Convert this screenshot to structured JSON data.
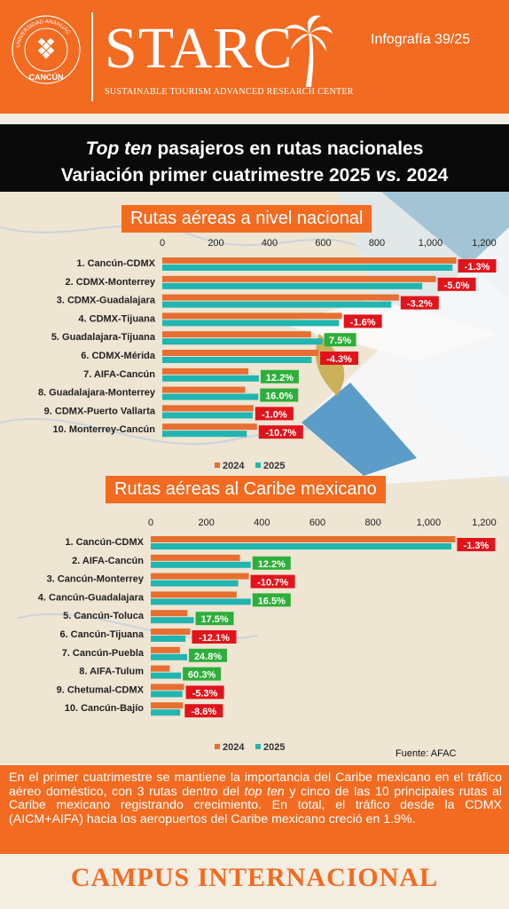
{
  "header": {
    "seal_text": "UNIVERSIDAD ANÁHUAC · VINCE IN BONO MALUM",
    "seal_city": "CANCÚN",
    "brand": "STARC",
    "brand_subtitle": "SUSTAINABLE TOURISM ADVANCED RESEARCH CENTER",
    "issue": "Infografía 39/25",
    "colors": {
      "orange": "#f26b21",
      "white": "#ffffff"
    }
  },
  "title": {
    "line1_italic": "Top ten",
    "line1_rest": " pasajeros en rutas nacionales",
    "line2_start": "Variación primer cuatrimestre 2025 ",
    "line2_italic": "vs.",
    "line2_end": " 2024"
  },
  "sections": [
    {
      "label": "Rutas aéreas a nivel nacional"
    },
    {
      "label": "Rutas aéreas al Caribe mexicano"
    }
  ],
  "chart_data": [
    {
      "type": "bar",
      "orientation": "horizontal",
      "xlim": [
        0,
        1200
      ],
      "ticks": [
        "0",
        "200",
        "400",
        "600",
        "800",
        "1,000",
        "1,200"
      ],
      "categories": [
        "1. Cancún-CDMX",
        "2. CDMX-Monterrey",
        "3. CDMX-Guadalajara",
        "4. CDMX-Tijuana",
        "5. Guadalajara-Tijuana",
        "6. CDMX-Mérida",
        "7. AIFA-Cancún",
        "8. Guadalajara-Monterrey",
        "9. CDMX-Puerto Vallarta",
        "10. Monterrey-Cancún"
      ],
      "series": [
        {
          "name": "2024",
          "color": "#e66f31",
          "values": [
            1096,
            1020,
            882,
            670,
            555,
            582,
            321,
            309,
            340,
            353
          ]
        },
        {
          "name": "2025",
          "color": "#21b5b0",
          "values": [
            1082,
            969,
            854,
            659,
            597,
            557,
            360,
            358,
            337,
            315
          ]
        }
      ],
      "changes": [
        "-1.3%",
        "-5.0%",
        "-3.2%",
        "-1.6%",
        "7.5%",
        "-4.3%",
        "12.2%",
        "16.0%",
        "-1.0%",
        "-10.7%"
      ],
      "legend_position": "bottom",
      "legend": [
        "2024",
        "2025"
      ]
    },
    {
      "type": "bar",
      "orientation": "horizontal",
      "xlim": [
        0,
        1200
      ],
      "ticks": [
        "0",
        "200",
        "400",
        "600",
        "800",
        "1,000",
        "1,200"
      ],
      "categories": [
        "1. Cancún-CDMX",
        "2. AIFA-Cancún",
        "3. Cancún-Monterrey",
        "4. Cancún-Guadalajara",
        "5. Cancún-Toluca",
        "6. Cancún-Tijuana",
        "7. Cancún-Puebla",
        "8. AIFA-Tulum",
        "9. Chetumal-CDMX",
        "10. Cancún-Bajío"
      ],
      "series": [
        {
          "name": "2024",
          "color": "#e66f31",
          "values": [
            1096,
            321,
            353,
            309,
            132,
            142,
            105,
            68,
            120,
            116
          ]
        },
        {
          "name": "2025",
          "color": "#21b5b0",
          "values": [
            1082,
            360,
            315,
            360,
            155,
            125,
            131,
            109,
            114,
            106
          ]
        }
      ],
      "changes": [
        "-1.3%",
        "12.2%",
        "-10.7%",
        "16.5%",
        "17.5%",
        "-12.1%",
        "24.8%",
        "60.3%",
        "-5.3%",
        "-8.6%"
      ],
      "legend_position": "bottom",
      "legend": [
        "2024",
        "2025"
      ]
    }
  ],
  "chart_colors": {
    "negative_label": "#e1141b",
    "positive_label": "#2eae3a"
  },
  "source": "Fuente: AFAC",
  "footer": {
    "t1": "En el primer cuatrimestre se mantiene la importancia del Caribe mexicano en el tráfico aéreo doméstico, con 3 rutas dentro del ",
    "t1_italic": "top ten",
    "t2": " y cinco de las 10 principales rutas al Caribe mexicano registrando crecimiento. En total, el tráfico desde la CDMX (AICM+AIFA) hacia los aeropuertos del Caribe mexicano creció en 1.9%."
  },
  "campus": "CAMPUS INTERNACIONAL"
}
